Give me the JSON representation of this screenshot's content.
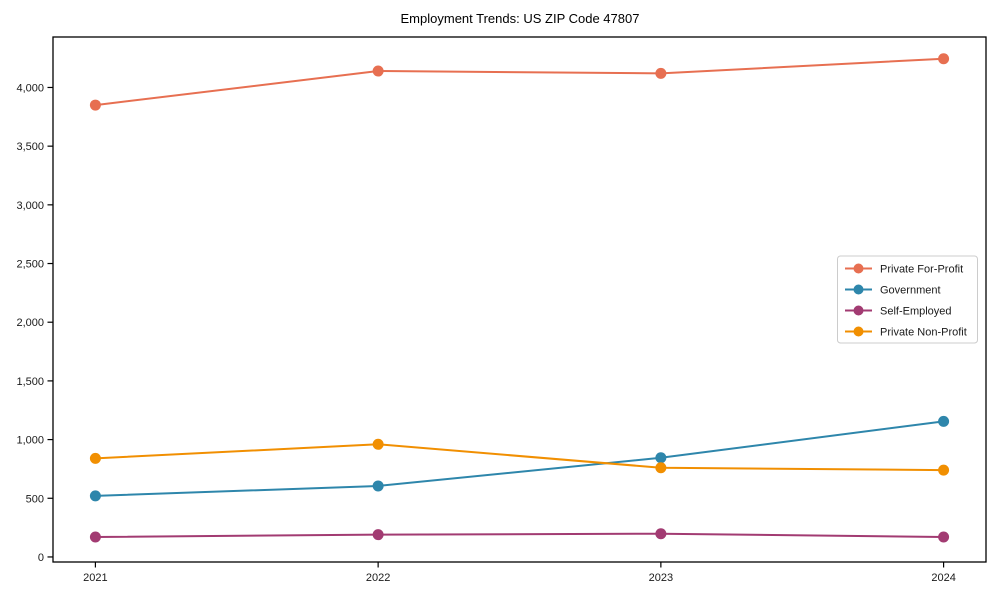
{
  "chart_data": {
    "type": "line",
    "title": "Employment Trends: US ZIP Code 47807",
    "x": [
      "2021",
      "2022",
      "2023",
      "2024"
    ],
    "series": [
      {
        "name": "Private For-Profit",
        "color": "#E76F51",
        "values": [
          3850,
          4140,
          4120,
          4245
        ]
      },
      {
        "name": "Government",
        "color": "#2E86AB",
        "values": [
          520,
          605,
          845,
          1155
        ]
      },
      {
        "name": "Self-Employed",
        "color": "#A23B72",
        "values": [
          170,
          190,
          198,
          170
        ]
      },
      {
        "name": "Private Non-Profit",
        "color": "#F18F01",
        "values": [
          840,
          960,
          760,
          740
        ]
      }
    ],
    "xlabel": "",
    "ylabel": "",
    "yticks": [
      0,
      500,
      1000,
      1500,
      2000,
      2500,
      3000,
      3500,
      4000
    ],
    "ylim": [
      -43,
      4430
    ],
    "x_margin_fraction": 0.15,
    "grid": false,
    "legend": {
      "position": "center-right",
      "labels": [
        "Private For-Profit",
        "Government",
        "Self-Employed",
        "Private Non-Profit"
      ]
    }
  },
  "style_colors": {
    "spine": "#000000",
    "tick": "#000000",
    "legend_border": "#cccccc",
    "background": "#ffffff"
  }
}
